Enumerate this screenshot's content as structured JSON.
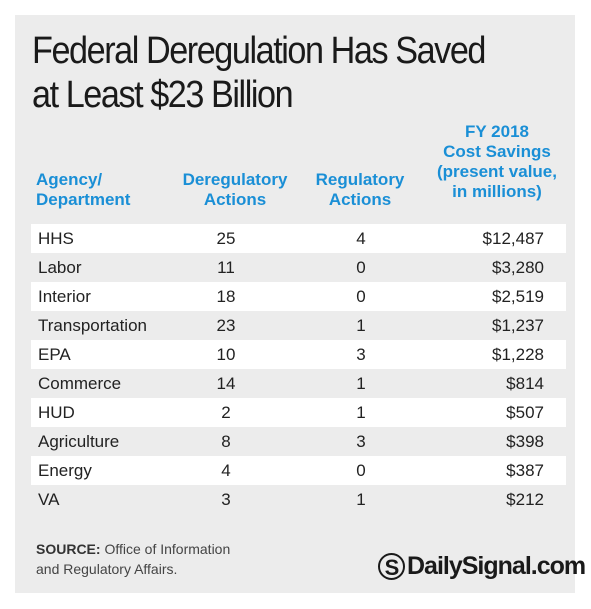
{
  "title": "Federal Deregulation Has Saved at Least $23 Billion",
  "chart_data": {
    "type": "table",
    "title": "Federal Deregulation Has Saved at Least $23 Billion",
    "columns": [
      "Agency/ Department",
      "Deregulatory Actions",
      "Regulatory Actions",
      "FY 2018 Cost Savings (present value, in millions)"
    ],
    "rows": [
      {
        "agency": "HHS",
        "dereg": "25",
        "reg": "4",
        "cost": "$12,487"
      },
      {
        "agency": "Labor",
        "dereg": "11",
        "reg": "0",
        "cost": "$3,280"
      },
      {
        "agency": "Interior",
        "dereg": "18",
        "reg": "0",
        "cost": "$2,519"
      },
      {
        "agency": "Transportation",
        "dereg": "23",
        "reg": "1",
        "cost": "$1,237"
      },
      {
        "agency": "EPA",
        "dereg": "10",
        "reg": "3",
        "cost": "$1,228"
      },
      {
        "agency": "Commerce",
        "dereg": "14",
        "reg": "1",
        "cost": "$814"
      },
      {
        "agency": "HUD",
        "dereg": "2",
        "reg": "1",
        "cost": "$507"
      },
      {
        "agency": "Agriculture",
        "dereg": "8",
        "reg": "3",
        "cost": "$398"
      },
      {
        "agency": "Energy",
        "dereg": "4",
        "reg": "0",
        "cost": "$387"
      },
      {
        "agency": "VA",
        "dereg": "3",
        "reg": "1",
        "cost": "$212"
      }
    ]
  },
  "headers": {
    "agency": [
      "Agency/",
      "Department"
    ],
    "dereg": [
      "Deregulatory",
      "Actions"
    ],
    "reg": [
      "Regulatory",
      "Actions"
    ],
    "cost": [
      "FY 2018",
      "Cost Savings",
      "(present value,",
      "in millions)"
    ]
  },
  "source": {
    "label": "SOURCE:",
    "text_line1": "Office of Information",
    "text_line2": "and Regulatory Affairs."
  },
  "brand": {
    "mark": "S",
    "name": "DailySignal.com"
  },
  "colors": {
    "header": "#1a8fd6",
    "background": "#ececec",
    "row_shade": "#ffffff",
    "text": "#222222"
  }
}
